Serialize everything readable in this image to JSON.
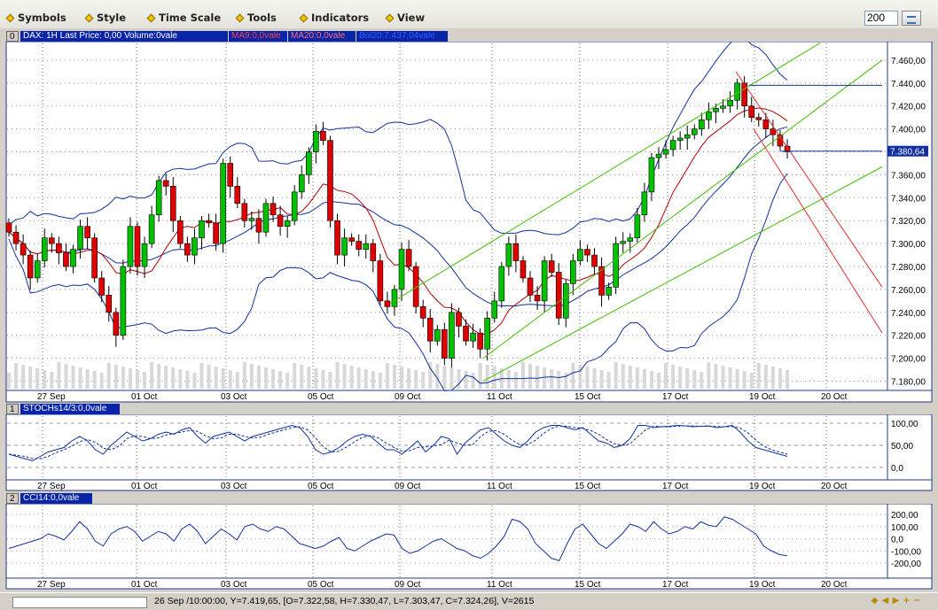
{
  "menu": [
    {
      "label": "Symbols"
    },
    {
      "label": "Style"
    },
    {
      "label": "Time Scale"
    },
    {
      "label": "Tools"
    },
    {
      "label": "Indicators"
    },
    {
      "label": "View"
    }
  ],
  "bars_count": "200",
  "price_panel": {
    "index": "0",
    "header": "DAX: 1H Last Price: 0,00 Volume:0vale",
    "ma9_label": "MA9:0,0vale",
    "ma20_label": "MA20:0,0vale",
    "bol_label": "Bol20:7.437,04vale",
    "last_price_label": "7.380,64",
    "y_ticks": [
      "7.460,00",
      "7.440,00",
      "7.420,00",
      "7.400,00",
      "7.380,00",
      "7.360,00",
      "7.340,00",
      "7.320,00",
      "7.300,00",
      "7.280,00",
      "7.260,00",
      "7.240,00",
      "7.220,00",
      "7.200,00",
      "7.180,00"
    ]
  },
  "x_dates": [
    "27 Sep",
    "01 Oct",
    "03 Oct",
    "05 Oct",
    "09 Oct",
    "11 Oct",
    "15 Oct",
    "17 Oct",
    "19 Oct",
    "20 Oct"
  ],
  "stoch_panel": {
    "index": "1",
    "header": "STOCHs14/3:0,0vale",
    "y_ticks": [
      "100,00",
      "50,00",
      "0,0"
    ]
  },
  "cci_panel": {
    "index": "2",
    "header": "CCI14:0,0vale",
    "y_ticks": [
      "200,00",
      "100,00",
      "0,0",
      "-100,00",
      "-200,00"
    ]
  },
  "status": "26 Sep /10:00:00, Y=7.419,65, [O=7.322,58, H=7.330,47, L=7.303,47, C=7.324,26], V=2615",
  "colors": {
    "up": "#00c000",
    "down": "#e00000",
    "bollinger": "#1030a0",
    "ma9": "#b00000",
    "ma20": "#c05050",
    "channel_up": "#40c000",
    "channel_down": "#e03030",
    "panel_header_bg": "#0a24a8"
  },
  "chart_data": {
    "type": "candlestick",
    "title": "DAX: 1H",
    "ylim": [
      7175,
      7470
    ],
    "closes": [
      7310,
      7300,
      7290,
      7270,
      7285,
      7305,
      7300,
      7292,
      7280,
      7295,
      7315,
      7305,
      7270,
      7255,
      7240,
      7220,
      7280,
      7315,
      7280,
      7300,
      7325,
      7355,
      7350,
      7320,
      7300,
      7290,
      7305,
      7320,
      7318,
      7300,
      7370,
      7350,
      7335,
      7320,
      7322,
      7310,
      7335,
      7325,
      7315,
      7320,
      7345,
      7360,
      7380,
      7398,
      7390,
      7320,
      7290,
      7305,
      7302,
      7295,
      7300,
      7285,
      7250,
      7245,
      7260,
      7295,
      7280,
      7245,
      7235,
      7215,
      7225,
      7200,
      7240,
      7228,
      7215,
      7222,
      7208,
      7235,
      7250,
      7280,
      7300,
      7285,
      7270,
      7255,
      7250,
      7285,
      7275,
      7235,
      7265,
      7285,
      7295,
      7290,
      7280,
      7255,
      7262,
      7300,
      7302,
      7305,
      7325,
      7345,
      7375,
      7378,
      7382,
      7390,
      7392,
      7395,
      7400,
      7408,
      7415,
      7418,
      7420,
      7425,
      7440,
      7420,
      7410,
      7408,
      7400,
      7395,
      7385,
      7380
    ],
    "stoch": [
      30,
      25,
      20,
      15,
      25,
      35,
      40,
      45,
      60,
      70,
      60,
      40,
      30,
      50,
      65,
      80,
      70,
      60,
      65,
      75,
      80,
      75,
      85,
      90,
      70,
      55,
      70,
      75,
      80,
      70,
      60,
      70,
      75,
      80,
      85,
      90,
      95,
      90,
      70,
      40,
      30,
      35,
      45,
      60,
      70,
      75,
      70,
      55,
      40,
      40,
      30,
      45,
      60,
      35,
      50,
      70,
      65,
      30,
      55,
      70,
      85,
      90,
      75,
      60,
      50,
      45,
      60,
      80,
      90,
      95,
      95,
      90,
      85,
      90,
      75,
      60,
      55,
      45,
      50,
      65,
      95,
      95,
      90,
      92,
      93,
      95,
      94,
      92,
      93,
      94,
      90,
      92,
      95,
      80,
      60,
      45,
      40,
      35,
      30,
      25
    ],
    "cci": [
      -80,
      -60,
      -40,
      -20,
      0,
      40,
      20,
      -10,
      60,
      140,
      80,
      -20,
      -60,
      40,
      80,
      100,
      60,
      -20,
      20,
      60,
      40,
      -20,
      80,
      120,
      60,
      -40,
      20,
      80,
      40,
      -10,
      100,
      120,
      80,
      60,
      100,
      80,
      20,
      -40,
      -60,
      -80,
      -60,
      -20,
      10,
      -80,
      -100,
      -60,
      -20,
      10,
      40,
      30,
      -80,
      -120,
      -100,
      -60,
      -20,
      0,
      -40,
      -80,
      -100,
      -140,
      -160,
      -120,
      -60,
      20,
      160,
      140,
      80,
      -40,
      -100,
      -160,
      -180,
      -40,
      80,
      120,
      40,
      -40,
      -80,
      -20,
      40,
      120,
      100,
      60,
      140,
      80,
      40,
      60,
      100,
      80,
      140,
      110,
      100,
      180,
      160,
      120,
      80,
      40,
      -60,
      -100,
      -130,
      -140
    ]
  }
}
